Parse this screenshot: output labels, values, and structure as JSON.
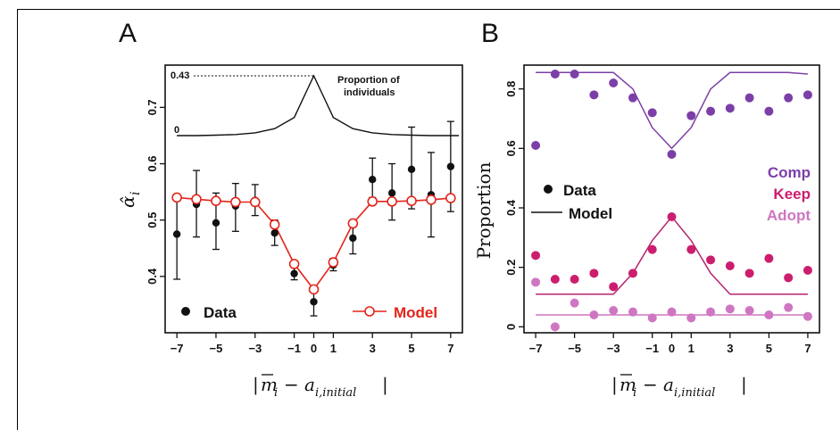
{
  "panels": {
    "a_letter": "A",
    "b_letter": "B"
  },
  "chart_data": [
    {
      "panel": "A",
      "type": "scatter",
      "ylabel": "α̂_i",
      "xlabel": "|m̄_i − a_i,initial|",
      "xlim": [
        -7.6,
        7.6
      ],
      "ylim": [
        0.3,
        0.775
      ],
      "xticks": [
        -7,
        -5,
        -3,
        -1,
        0,
        1,
        3,
        5,
        7
      ],
      "yticks": [
        0.4,
        0.5,
        0.6,
        0.7
      ],
      "x": [
        -7,
        -6,
        -5,
        -4,
        -3,
        -2,
        -1,
        0,
        1,
        2,
        3,
        4,
        5,
        6,
        7
      ],
      "series": [
        {
          "name": "Data",
          "color": "#111111",
          "values": [
            0.475,
            0.528,
            0.495,
            0.525,
            0.535,
            0.477,
            0.405,
            0.355,
            0.42,
            0.468,
            0.572,
            0.548,
            0.59,
            0.545,
            0.595
          ],
          "err_low": [
            0.395,
            0.47,
            0.448,
            0.48,
            0.508,
            0.455,
            0.394,
            0.33,
            0.41,
            0.44,
            0.54,
            0.5,
            0.52,
            0.47,
            0.515
          ],
          "err_high": [
            0.545,
            0.588,
            0.548,
            0.565,
            0.563,
            0.5,
            0.416,
            0.38,
            0.432,
            0.492,
            0.61,
            0.6,
            0.665,
            0.62,
            0.675
          ]
        },
        {
          "name": "Model",
          "color": "#e3241b",
          "values": [
            0.54,
            0.537,
            0.534,
            0.532,
            0.532,
            0.492,
            0.422,
            0.377,
            0.425,
            0.494,
            0.533,
            0.533,
            0.534,
            0.536,
            0.539
          ]
        }
      ],
      "inset": {
        "label": "Proportion of individuals",
        "tick_top": "0.43",
        "tick_zero": "0",
        "values": [
          0.0,
          0.0,
          0.003,
          0.008,
          0.02,
          0.05,
          0.13,
          0.43,
          0.13,
          0.05,
          0.02,
          0.008,
          0.003,
          0.0,
          0.0
        ]
      },
      "legend": [
        {
          "label": "Data",
          "color": "#111111"
        },
        {
          "label": "Model",
          "color": "#e3241b"
        }
      ]
    },
    {
      "panel": "B",
      "type": "scatter",
      "ylabel": "Proportion",
      "xlabel": "|m̄_i − a_i,initial|",
      "xlim": [
        -7.6,
        7.6
      ],
      "ylim": [
        -0.02,
        0.88
      ],
      "xticks": [
        -7,
        -5,
        -3,
        -1,
        0,
        1,
        3,
        5,
        7
      ],
      "yticks": [
        0,
        0.2,
        0.4,
        0.6,
        0.8
      ],
      "x": [
        -7,
        -6,
        -5,
        -4,
        -3,
        -2,
        -1,
        0,
        1,
        2,
        3,
        4,
        5,
        6,
        7
      ],
      "series": [
        {
          "name": "Comp",
          "color": "#7c3fa8",
          "data": [
            0.61,
            0.85,
            0.85,
            0.78,
            0.82,
            0.77,
            0.72,
            0.58,
            0.71,
            0.725,
            0.735,
            0.77,
            0.725,
            0.77,
            0.78
          ],
          "model": [
            0.855,
            0.855,
            0.855,
            0.855,
            0.855,
            0.8,
            0.67,
            0.6,
            0.67,
            0.8,
            0.855,
            0.855,
            0.855,
            0.855,
            0.85
          ]
        },
        {
          "name": "Keep",
          "color": "#cc1e6e",
          "data": [
            0.24,
            0.16,
            0.16,
            0.18,
            0.135,
            0.18,
            0.26,
            0.37,
            0.26,
            0.225,
            0.205,
            0.18,
            0.23,
            0.165,
            0.19
          ]
        },
        {
          "name": "Keep model",
          "color": "#b5246f",
          "model": [
            0.11,
            0.11,
            0.11,
            0.11,
            0.11,
            0.18,
            0.29,
            0.37,
            0.29,
            0.18,
            0.11,
            0.11,
            0.11,
            0.11,
            0.11
          ]
        },
        {
          "name": "Adopt",
          "color": "#cf76c2",
          "data": [
            0.15,
            0.0,
            0.08,
            0.04,
            0.055,
            0.05,
            0.03,
            0.05,
            0.03,
            0.05,
            0.06,
            0.055,
            0.04,
            0.065,
            0.035
          ],
          "model": [
            0.04,
            0.04,
            0.04,
            0.04,
            0.04,
            0.04,
            0.04,
            0.04,
            0.04,
            0.04,
            0.04,
            0.04,
            0.04,
            0.04,
            0.04
          ]
        }
      ],
      "legend": [
        {
          "label": "Data",
          "color": "#111111"
        },
        {
          "label": "Model",
          "color": "#111111"
        },
        {
          "label": "Comp",
          "color": "#7c3fa8"
        },
        {
          "label": "Keep",
          "color": "#cc1e6e"
        },
        {
          "label": "Adopt",
          "color": "#cf76c2"
        }
      ]
    }
  ]
}
